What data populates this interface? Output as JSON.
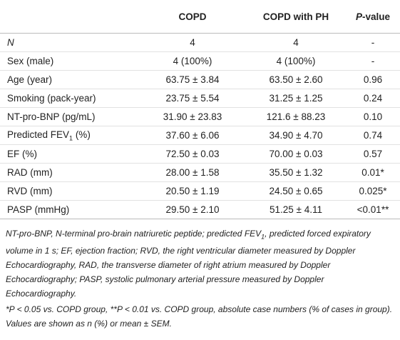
{
  "header": {
    "columns": [
      "COPD",
      "COPD with PH"
    ],
    "p_value": {
      "italic": "P",
      "text": "-value"
    }
  },
  "table": {
    "rows": [
      {
        "label": [
          {
            "text": "N",
            "italic": true
          }
        ],
        "cells": [
          "4",
          "4",
          "-"
        ]
      },
      {
        "label": [
          {
            "text": "Sex (male)"
          }
        ],
        "cells": [
          "4 (100%)",
          "4 (100%)",
          "-"
        ]
      },
      {
        "label": [
          {
            "text": "Age (year)"
          }
        ],
        "cells": [
          "63.75 ± 3.84",
          "63.50 ± 2.60",
          "0.96"
        ]
      },
      {
        "label": [
          {
            "text": "Smoking (pack-year)"
          }
        ],
        "cells": [
          "23.75 ± 5.54",
          "31.25 ± 1.25",
          "0.24"
        ]
      },
      {
        "label": [
          {
            "text": "NT-pro-BNP (pg/mL)"
          }
        ],
        "cells": [
          "31.90 ± 23.83",
          "121.6 ± 88.23",
          "0.10"
        ]
      },
      {
        "label": [
          {
            "text": "Predicted FEV"
          },
          {
            "sub": "1"
          },
          {
            "text": " (%)"
          }
        ],
        "cells": [
          "37.60 ± 6.06",
          "34.90 ± 4.70",
          "0.74"
        ]
      },
      {
        "label": [
          {
            "text": "EF (%)"
          }
        ],
        "cells": [
          "72.50 ± 0.03",
          "70.00 ± 0.03",
          "0.57"
        ]
      },
      {
        "label": [
          {
            "text": "RAD (mm)"
          }
        ],
        "cells": [
          "28.00 ± 1.58",
          "35.50 ± 1.32",
          "0.01*"
        ]
      },
      {
        "label": [
          {
            "text": "RVD (mm)"
          }
        ],
        "cells": [
          "20.50 ± 1.19",
          "24.50 ± 0.65",
          "0.025*"
        ]
      },
      {
        "label": [
          {
            "text": "PASP (mmHg)"
          }
        ],
        "cells": [
          "29.50 ± 2.10",
          "51.25 ± 4.11",
          "<0.01**"
        ]
      }
    ]
  },
  "footnotes": [
    [
      {
        "text": "NT-pro-BNP, N-terminal pro-brain natriuretic peptide; predicted FEV"
      },
      {
        "sub": "1"
      },
      {
        "text": ", predicted forced expiratory volume in 1 s; EF, ejection fraction; RVD, the right ventricular diameter measured by Doppler Echocardiography, RAD, the transverse diameter of right atrium measured by Doppler Echocardiography; PASP, systolic pulmonary arterial pressure measured by Doppler Echocardiography."
      }
    ],
    [
      {
        "text": "*P < 0.05 vs. COPD group, **P < 0.01 vs. COPD group, absolute case numbers (% of cases in group). Values are shown as n (%) or mean ± SEM."
      }
    ]
  ]
}
